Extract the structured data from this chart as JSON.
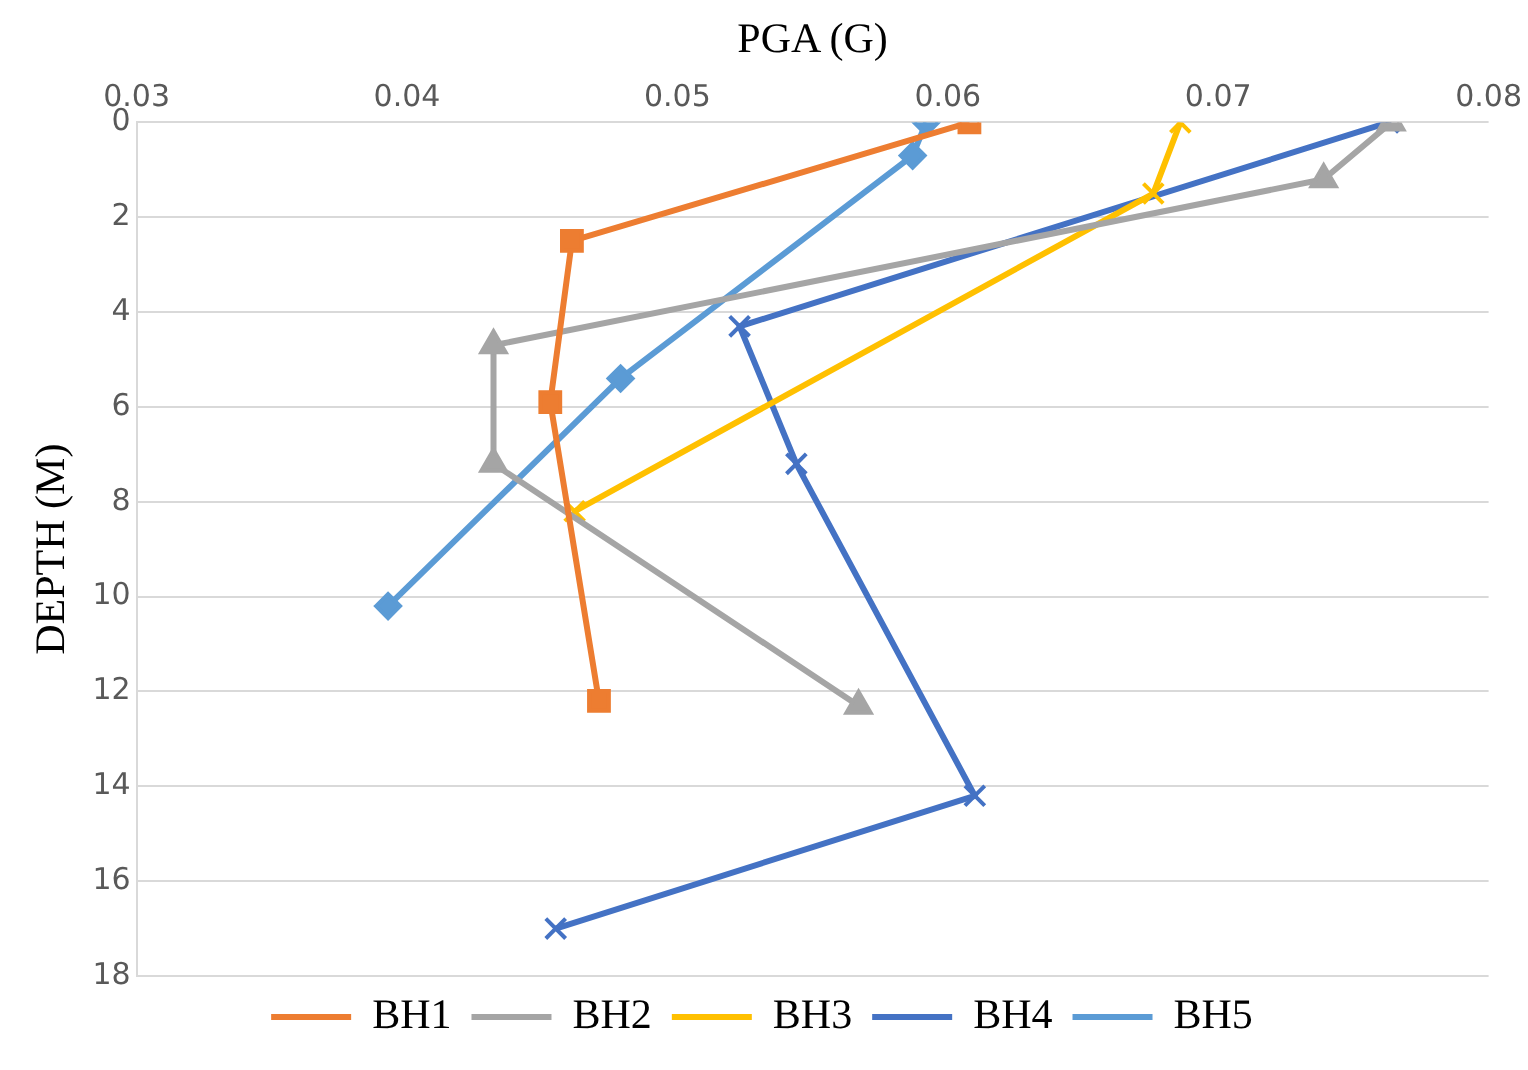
{
  "chart_data": {
    "type": "line",
    "xlabel": "PGA (G)",
    "ylabel": "DEPTH (M)",
    "xlim": [
      0.03,
      0.08
    ],
    "xticks": [
      0.03,
      0.04,
      0.05,
      0.06,
      0.07,
      0.08
    ],
    "ylim": [
      18,
      0
    ],
    "yticks": [
      0,
      2,
      4,
      6,
      8,
      10,
      12,
      14,
      16,
      18
    ],
    "grid": "y",
    "legend": "bottom",
    "series": [
      {
        "name": "BH1",
        "color": "#ed7d31",
        "marker": "square",
        "x": [
          0.0608,
          0.0461,
          0.0453,
          0.0471
        ],
        "values": [
          0,
          2.5,
          5.9,
          12.2
        ]
      },
      {
        "name": "BH2",
        "color": "#a5a5a5",
        "marker": "triangle",
        "x": [
          0.0764,
          0.0739,
          0.0432,
          0.0432,
          0.0567
        ],
        "values": [
          0,
          1.2,
          4.7,
          7.2,
          12.3
        ]
      },
      {
        "name": "BH3",
        "color": "#ffc000",
        "marker": "cross",
        "x": [
          0.0686,
          0.0676,
          0.0462
        ],
        "values": [
          0,
          1.5,
          8.2
        ]
      },
      {
        "name": "BH4",
        "color": "#4472c4",
        "marker": "cross",
        "x": [
          0.0763,
          0.0523,
          0.0544,
          0.061,
          0.0455
        ],
        "values": [
          0,
          4.3,
          7.2,
          14.2,
          17.0
        ]
      },
      {
        "name": "BH5",
        "color": "#5b9bd5",
        "marker": "diamond",
        "x": [
          0.0592,
          0.0587,
          0.0479,
          0.0393
        ],
        "values": [
          0,
          0.7,
          5.4,
          10.2
        ]
      }
    ]
  }
}
